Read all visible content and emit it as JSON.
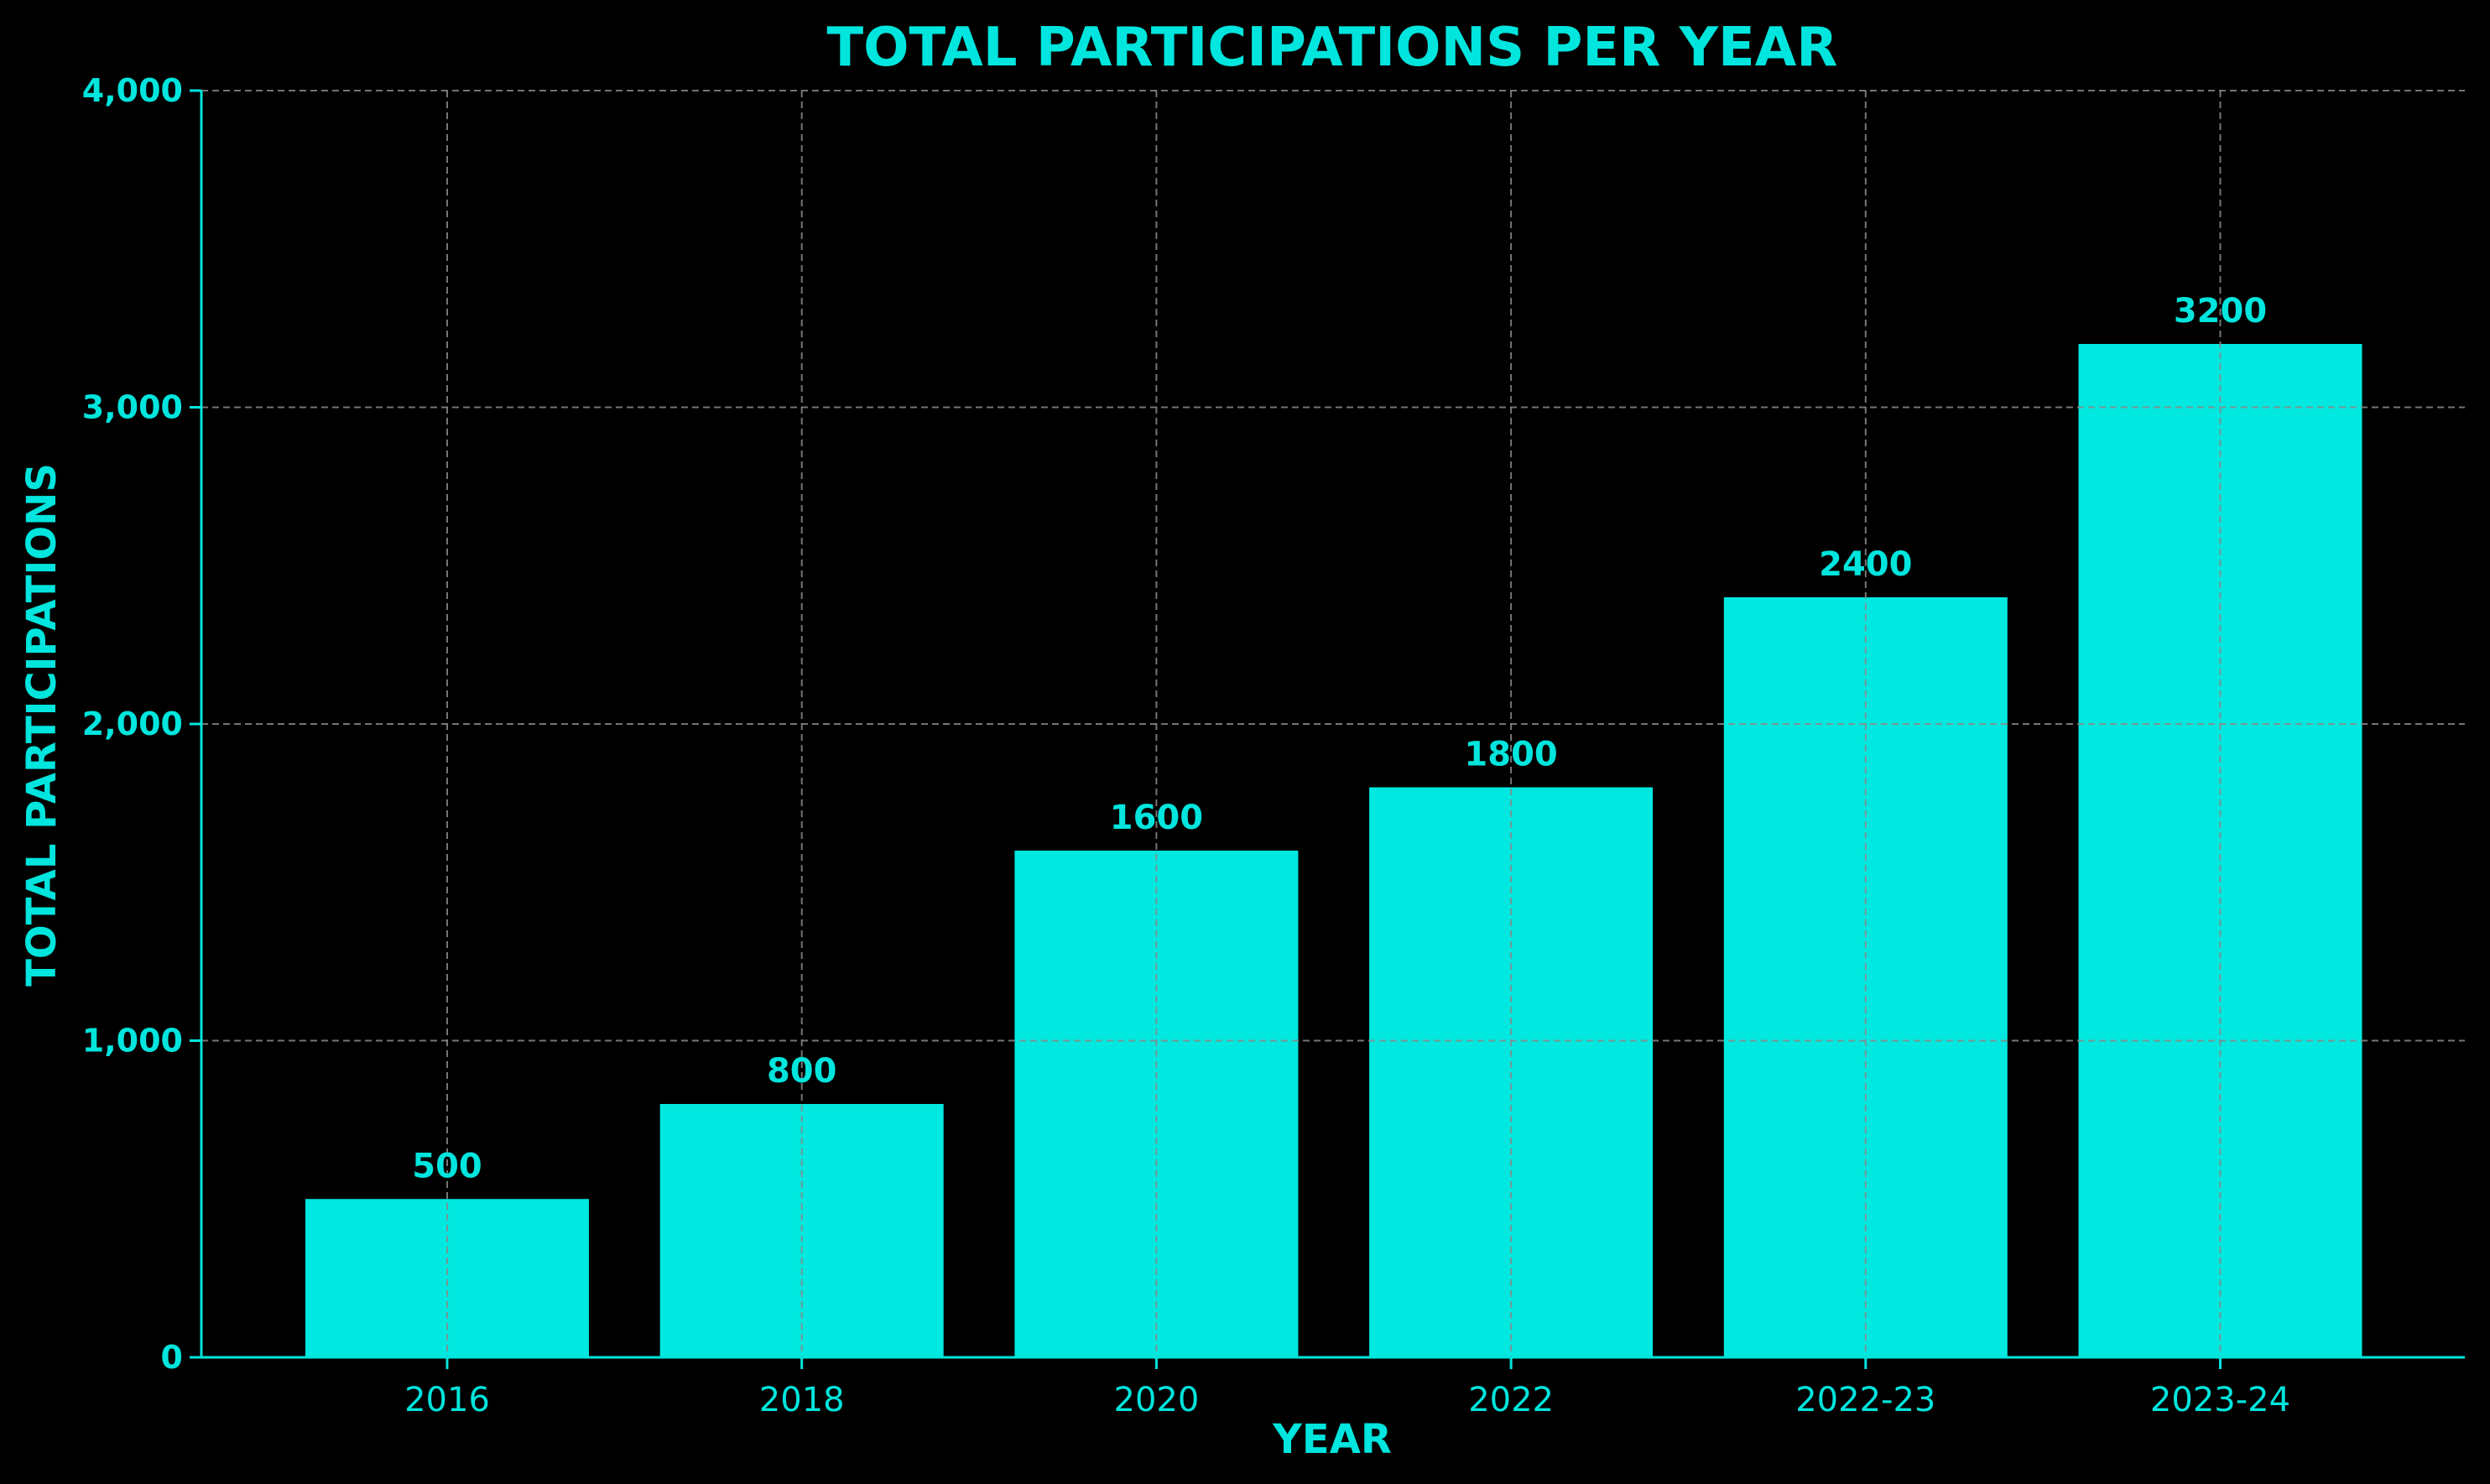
{
  "colors": {
    "background": "#000000",
    "accent": "#00E5DD",
    "bar": "#00E8DF",
    "grid": "#8A8A8A"
  },
  "chart_data": {
    "type": "bar",
    "title": "TOTAL PARTICIPATIONS PER YEAR",
    "xlabel": "YEAR",
    "ylabel": "TOTAL PARTICIPATIONS",
    "categories": [
      "2016",
      "2018",
      "2020",
      "2022",
      "2022-23",
      "2023-24"
    ],
    "values": [
      500,
      800,
      1600,
      1800,
      2400,
      3200
    ],
    "value_labels": [
      "500",
      "800",
      "1600",
      "1800",
      "2400",
      "3200"
    ],
    "ylim": [
      0,
      4000
    ],
    "yticks": [
      0,
      1000,
      2000,
      3000,
      4000
    ],
    "ytick_labels": [
      "0",
      "1,000",
      "2,000",
      "3,000",
      "4,000"
    ],
    "grid": true,
    "grid_style": "dashed"
  }
}
